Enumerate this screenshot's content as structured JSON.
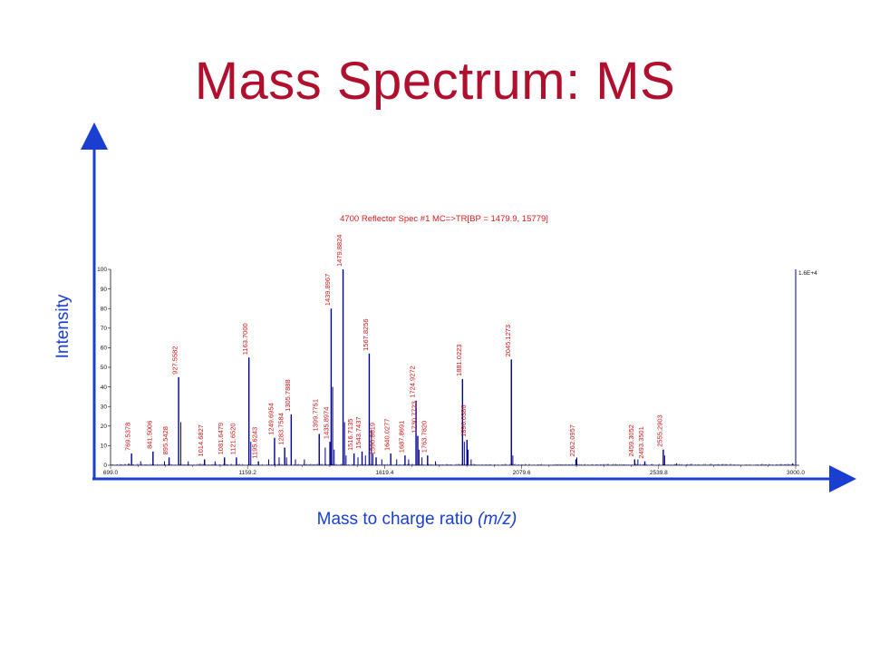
{
  "slide": {
    "title": "Mass Spectrum: MS",
    "y_axis_label": "Intensity",
    "x_axis_label_main": "Mass to charge ratio ",
    "x_axis_label_unit": "(m/z)"
  },
  "colors": {
    "title": "#b0102e",
    "outer_axes": "#1a3fd0",
    "spectrum": "#00008b",
    "peak_labels": "#d01515"
  },
  "chart_data": {
    "type": "line",
    "title": "4700 Reflector Spec #1 MC=>TR[BP = 1479.9, 15779]",
    "xlabel": "Mass to charge ratio (m/z)",
    "ylabel": "Intensity",
    "xlim": [
      699.0,
      3000.0
    ],
    "ylim": [
      0,
      100
    ],
    "x_ticks": [
      "699.0",
      "1159.2",
      "1619.4",
      "2079.6",
      "2539.8",
      "3000.0"
    ],
    "y_ticks": [
      "0",
      "10",
      "20",
      "30",
      "40",
      "50",
      "60",
      "70",
      "80",
      "90",
      "100"
    ],
    "scale_label": "1.6E+4",
    "grid": false,
    "peaks": [
      {
        "mz": 769.5378,
        "intensity": 6,
        "label": "769.5378"
      },
      {
        "mz": 841.5006,
        "intensity": 7,
        "label": "841.5006"
      },
      {
        "mz": 895.5428,
        "intensity": 4,
        "label": "895.5428"
      },
      {
        "mz": 927.5582,
        "intensity": 45,
        "label": "927.5582"
      },
      {
        "mz": 1014.6827,
        "intensity": 3,
        "label": "1014.6827"
      },
      {
        "mz": 1081.6479,
        "intensity": 4,
        "label": "1081.6479"
      },
      {
        "mz": 1121.652,
        "intensity": 4,
        "label": "1121.6520"
      },
      {
        "mz": 1163.7,
        "intensity": 55,
        "label": "1163.7000"
      },
      {
        "mz": 1195.6243,
        "intensity": 2,
        "label": "1195.6243"
      },
      {
        "mz": 1249.6954,
        "intensity": 14,
        "label": "1249.6954"
      },
      {
        "mz": 1283.7584,
        "intensity": 9,
        "label": "1283.7584"
      },
      {
        "mz": 1305.7888,
        "intensity": 26,
        "label": "1305.7888"
      },
      {
        "mz": 1399.7751,
        "intensity": 16,
        "label": "1399.7751"
      },
      {
        "mz": 1435.8974,
        "intensity": 12,
        "label": "1435.8974"
      },
      {
        "mz": 1439.8967,
        "intensity": 80,
        "label": "1439.8967"
      },
      {
        "mz": 1479.8824,
        "intensity": 100,
        "label": "1479.8824"
      },
      {
        "mz": 1516.7135,
        "intensity": 6,
        "label": "1516.7135"
      },
      {
        "mz": 1543.7437,
        "intensity": 7,
        "label": "1543.7437"
      },
      {
        "mz": 1567.8256,
        "intensity": 57,
        "label": "1567.8256"
      },
      {
        "mz": 1590.8619,
        "intensity": 4,
        "label": "1590.8619"
      },
      {
        "mz": 1640.0277,
        "intensity": 6,
        "label": "1640.0277"
      },
      {
        "mz": 1687.8691,
        "intensity": 5,
        "label": "1687.8691"
      },
      {
        "mz": 1724.9272,
        "intensity": 33,
        "label": "1724.9272"
      },
      {
        "mz": 1730.7723,
        "intensity": 15,
        "label": "1730.7723"
      },
      {
        "mz": 1763.782,
        "intensity": 5,
        "label": "1763.7820"
      },
      {
        "mz": 1881.0223,
        "intensity": 44,
        "label": "1881.0223"
      },
      {
        "mz": 1896.0386,
        "intensity": 13,
        "label": "1896.0386"
      },
      {
        "mz": 2045.1273,
        "intensity": 54,
        "label": "2045.1273"
      },
      {
        "mz": 2262.0957,
        "intensity": 3,
        "label": "2262.0957"
      },
      {
        "mz": 2459.3052,
        "intensity": 3,
        "label": "2459.3052"
      },
      {
        "mz": 2493.3501,
        "intensity": 2,
        "label": "2493.3501"
      },
      {
        "mz": 2555.2903,
        "intensity": 8,
        "label": "2555.2903"
      }
    ],
    "minor_peaks": [
      {
        "mz": 760,
        "intensity": 1
      },
      {
        "mz": 800,
        "intensity": 2
      },
      {
        "mz": 880,
        "intensity": 2
      },
      {
        "mz": 935,
        "intensity": 22
      },
      {
        "mz": 960,
        "intensity": 2
      },
      {
        "mz": 1050,
        "intensity": 2
      },
      {
        "mz": 1170,
        "intensity": 12
      },
      {
        "mz": 1230,
        "intensity": 3
      },
      {
        "mz": 1265,
        "intensity": 4
      },
      {
        "mz": 1290,
        "intensity": 4
      },
      {
        "mz": 1320,
        "intensity": 3
      },
      {
        "mz": 1350,
        "intensity": 3
      },
      {
        "mz": 1420,
        "intensity": 9
      },
      {
        "mz": 1445,
        "intensity": 40
      },
      {
        "mz": 1450,
        "intensity": 8
      },
      {
        "mz": 1485,
        "intensity": 22
      },
      {
        "mz": 1490,
        "intensity": 5
      },
      {
        "mz": 1530,
        "intensity": 4
      },
      {
        "mz": 1555,
        "intensity": 5
      },
      {
        "mz": 1575,
        "intensity": 18
      },
      {
        "mz": 1580,
        "intensity": 6
      },
      {
        "mz": 1610,
        "intensity": 3
      },
      {
        "mz": 1660,
        "intensity": 3
      },
      {
        "mz": 1700,
        "intensity": 3
      },
      {
        "mz": 1735,
        "intensity": 8
      },
      {
        "mz": 1745,
        "intensity": 4
      },
      {
        "mz": 1790,
        "intensity": 2
      },
      {
        "mz": 1887,
        "intensity": 12
      },
      {
        "mz": 1900,
        "intensity": 8
      },
      {
        "mz": 1910,
        "intensity": 3
      },
      {
        "mz": 2050,
        "intensity": 5
      },
      {
        "mz": 2265,
        "intensity": 4
      },
      {
        "mz": 2470,
        "intensity": 3
      },
      {
        "mz": 2560,
        "intensity": 5
      },
      {
        "mz": 2600,
        "intensity": 1
      },
      {
        "mz": 2990,
        "intensity": 1
      }
    ],
    "scale_marker": {
      "mz": 3000.0,
      "intensity": 100
    }
  }
}
